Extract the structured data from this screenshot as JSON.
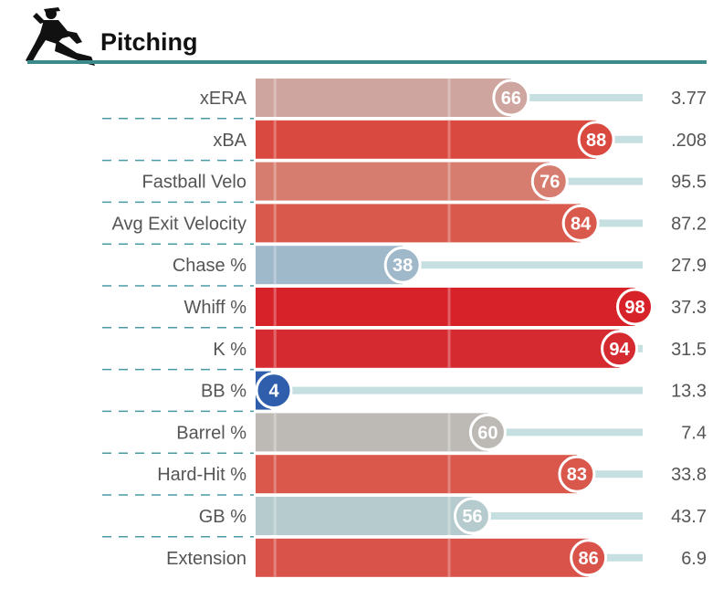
{
  "header": {
    "title": "Pitching",
    "icon": "pitcher-silhouette-icon",
    "rule_color": "#3d8a8a"
  },
  "colors": {
    "track": "#c6dfe0",
    "divider": "#4a9aa3",
    "label": "#555555"
  },
  "chart_data": {
    "type": "bar",
    "title": "Pitching",
    "xlim": [
      0,
      100
    ],
    "grid": "vertical lines at 50",
    "categories": [
      "xERA",
      "xBA",
      "Fastball Velo",
      "Avg Exit Velocity",
      "Chase %",
      "Whiff %",
      "K %",
      "BB %",
      "Barrel %",
      "Hard-Hit %",
      "GB %",
      "Extension"
    ],
    "values": [
      66,
      88,
      76,
      84,
      38,
      98,
      94,
      4,
      60,
      83,
      56,
      86
    ],
    "stat_values": [
      "3.77",
      ".208",
      "95.5",
      "87.2",
      "27.9",
      "37.3",
      "31.5",
      "13.3",
      "7.4",
      "33.8",
      "43.7",
      "6.9"
    ],
    "bar_colors": [
      "#cfa69f",
      "#d9493f",
      "#d67d70",
      "#d9594d",
      "#9fb8ca",
      "#d72229",
      "#d62a31",
      "#2f5fac",
      "#bdbab6",
      "#d9574b",
      "#b6cbcd",
      "#d9534a"
    ]
  }
}
